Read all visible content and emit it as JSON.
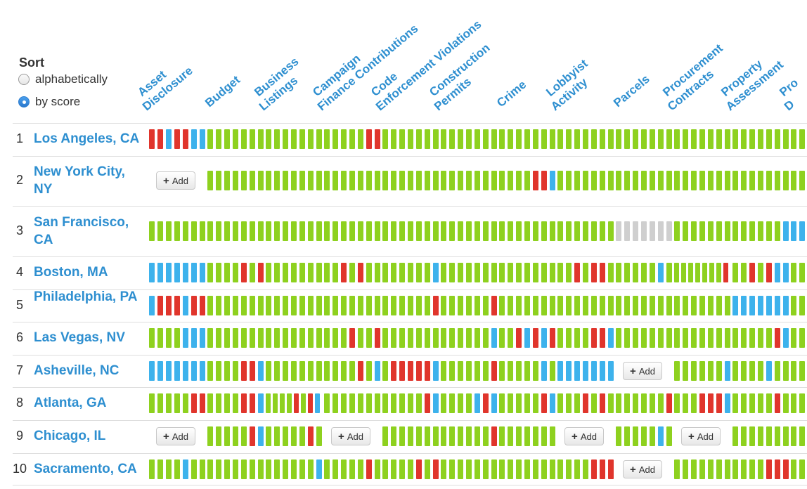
{
  "sort": {
    "label": "Sort",
    "options": [
      {
        "label": "alphabetically",
        "selected": false
      },
      {
        "label": "by score",
        "selected": true
      }
    ]
  },
  "columns": [
    {
      "key": "asset",
      "lines": [
        "Asset",
        "Disclosure"
      ]
    },
    {
      "key": "budget",
      "lines": [
        "Budget"
      ]
    },
    {
      "key": "business",
      "lines": [
        "Business",
        "Listings"
      ]
    },
    {
      "key": "campaign",
      "lines": [
        "Campaign",
        "Finance Contributions"
      ]
    },
    {
      "key": "code",
      "lines": [
        "Code",
        "Enforcement Violations"
      ]
    },
    {
      "key": "construction",
      "lines": [
        "Construction",
        "Permits"
      ]
    },
    {
      "key": "crime",
      "lines": [
        "Crime"
      ]
    },
    {
      "key": "lobbyist",
      "lines": [
        "Lobbyist",
        "Activity"
      ]
    },
    {
      "key": "parcels",
      "lines": [
        "Parcels"
      ]
    },
    {
      "key": "procurement",
      "lines": [
        "Procurement",
        "Contracts"
      ]
    },
    {
      "key": "property",
      "lines": [
        "Property",
        "Assessment"
      ]
    },
    {
      "key": "proj",
      "lines": [
        "Pro",
        "D"
      ]
    }
  ],
  "add_label": "Add",
  "colors": {
    "g": "#8ed11f",
    "r": "#e0352c",
    "b": "#3db2ec",
    "x": "#cfcfcf",
    "link": "#2e8fd0"
  },
  "rows": [
    {
      "rank": "1",
      "name": "Los Angeles, CA",
      "cells": [
        "rrbrrbb",
        "ggggggg",
        "ggggggg",
        "gggggrr",
        "ggggggg",
        "ggggggg",
        "ggggggg",
        "ggggggg",
        "ggggggg",
        "ggggggg",
        "ggggggg",
        "ggg"
      ]
    },
    {
      "rank": "2",
      "name": "New York City, NY",
      "cells": [
        "ADD",
        "ggggggg",
        "ggggggg",
        "ggggggg",
        "ggggggg",
        "ggggggg",
        "ggggrrb",
        "ggggggg",
        "ggggggg",
        "ggggggg",
        "ggggggg",
        "ggg"
      ]
    },
    {
      "rank": "3",
      "name": "San Francisco, CA",
      "cells": [
        "ggggggg",
        "ggggggg",
        "ggggggg",
        "ggggggg",
        "ggggggg",
        "ggggggg",
        "ggggggg",
        "ggggggg",
        "xxxxxxx",
        "ggggggg",
        "ggggggb",
        "bbb"
      ]
    },
    {
      "rank": "4",
      "name": "Boston, MA",
      "cells": [
        "bbbbbbb",
        "ggggrgr",
        "ggggggg",
        "ggrgrgg",
        "ggggggb",
        "ggggggg",
        "ggggggg",
        "ggrgrrg",
        "gggggbg",
        "gggggggr",
        "ggrgrbb",
        "ggg"
      ]
    },
    {
      "rank": "5",
      "name": "Philadelphia, PA",
      "cells": [
        "brrrbrr",
        "ggggggg",
        "ggggggg",
        "ggggggg",
        "ggggggr",
        "ggggggr",
        "ggggggg",
        "ggggggg",
        "ggggggg",
        "ggggggg",
        "bbbbbbb",
        "ggg"
      ]
    },
    {
      "rank": "6",
      "name": "Las Vegas, NV",
      "cells": [
        "ggggbbb",
        "ggggggg",
        "ggggggg",
        "gggrggr",
        "ggggggg",
        "ggggggb",
        "ggrbrbr",
        "ggggrrb",
        "ggggggg",
        "ggggggg",
        "gggggrb",
        "ggg"
      ]
    },
    {
      "rank": "7",
      "name": "Asheville, NC",
      "cells": [
        "bbbbbbb",
        "ggggrrb",
        "ggggggg",
        "ggggrgb",
        "grrrrrb",
        "ggggggr",
        "gggggbg",
        "bbbbbbb",
        "ADD",
        "ggggggb",
        "ggggbgg",
        "ggg"
      ]
    },
    {
      "rank": "8",
      "name": "Atlanta, GA",
      "cells": [
        "gggggrr",
        "ggggrrb",
        "ggggrgrb",
        "ggggggg",
        "gggggrb",
        "ggggbrb",
        "gggggrb",
        "gggrgrg",
        "ggggggr",
        "gggrrrb",
        "gggggrg",
        "ggg"
      ]
    },
    {
      "rank": "9",
      "name": "Chicago, IL",
      "cells": [
        "ADD",
        "gggggrb",
        "gggggrg",
        "ADD",
        "ggggggg",
        "ggggggr",
        "ggggggg",
        "ADD",
        "gggggbg",
        "ADD",
        "ggggggg",
        "ggg"
      ]
    },
    {
      "rank": "10",
      "name": "Sacramento, CA",
      "cells": [
        "ggggbgg",
        "ggggggg",
        "ggggggb",
        "gggggrg",
        "ggggrgr",
        "ggggggg",
        "ggggggg",
        "ggggrrr",
        "ADD",
        "ggggggg",
        "ggggrrr",
        "ggg"
      ]
    }
  ]
}
